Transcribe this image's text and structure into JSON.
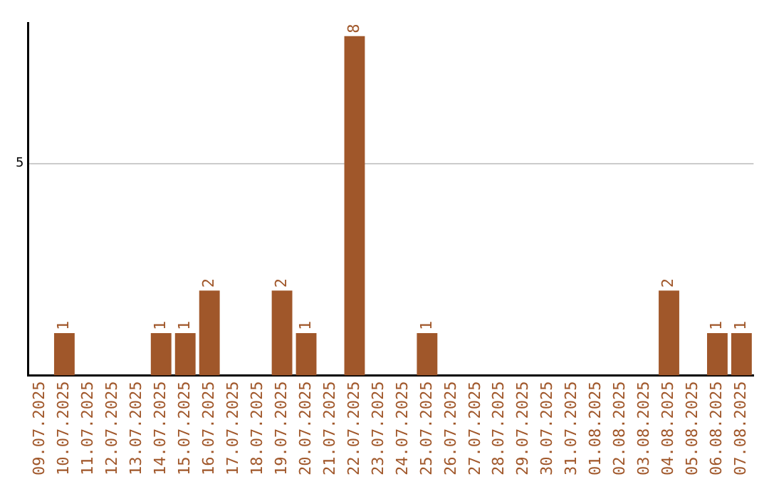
{
  "chart_data": {
    "type": "bar",
    "categories": [
      "09.07.2025",
      "10.07.2025",
      "11.07.2025",
      "12.07.2025",
      "13.07.2025",
      "14.07.2025",
      "15.07.2025",
      "16.07.2025",
      "17.07.2025",
      "18.07.2025",
      "19.07.2025",
      "20.07.2025",
      "21.07.2025",
      "22.07.2025",
      "23.07.2025",
      "24.07.2025",
      "25.07.2025",
      "26.07.2025",
      "27.07.2025",
      "28.07.2025",
      "29.07.2025",
      "30.07.2025",
      "31.07.2025",
      "01.08.2025",
      "02.08.2025",
      "03.08.2025",
      "04.08.2025",
      "05.08.2025",
      "06.08.2025",
      "07.08.2025"
    ],
    "values": [
      0,
      1,
      0,
      0,
      0,
      1,
      1,
      2,
      0,
      0,
      2,
      1,
      0,
      8,
      0,
      0,
      1,
      0,
      0,
      0,
      0,
      0,
      0,
      0,
      0,
      0,
      2,
      0,
      1,
      1
    ],
    "value_labels": [
      null,
      "1",
      null,
      null,
      null,
      "1",
      "1",
      "2",
      null,
      null,
      "2",
      "1",
      null,
      "8",
      null,
      null,
      "1",
      null,
      null,
      null,
      null,
      null,
      null,
      null,
      null,
      null,
      "2",
      null,
      "1",
      "1"
    ],
    "color": "#a0572a",
    "ylim": [
      0,
      8.3
    ],
    "yticks": [
      5
    ],
    "grid": "y"
  }
}
